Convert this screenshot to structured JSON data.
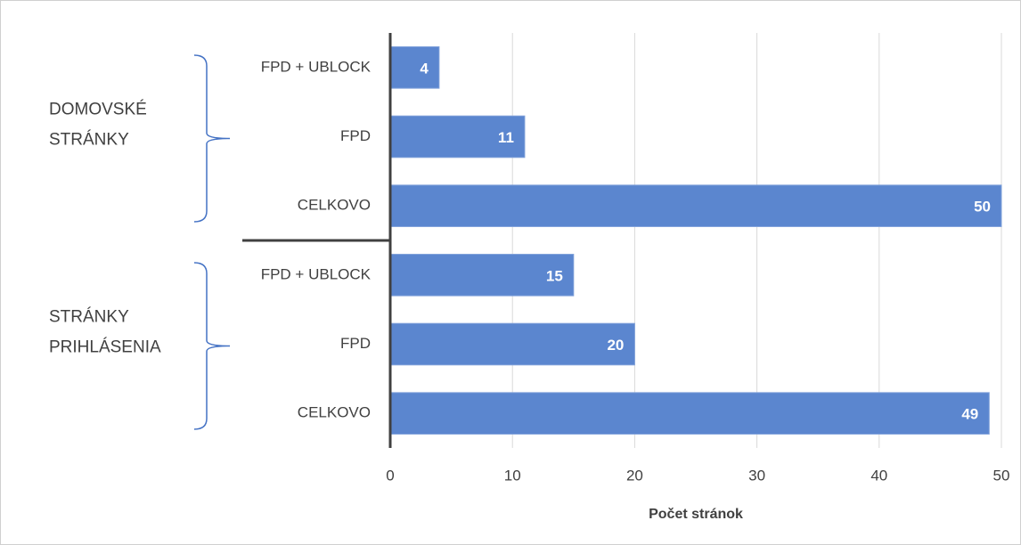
{
  "chart_data": {
    "type": "bar",
    "orientation": "horizontal",
    "color": "#5b86cf",
    "grid": true,
    "xlabel": "Počet stránok",
    "xlim": [
      0,
      50
    ],
    "xticks": [
      0,
      10,
      20,
      30,
      40,
      50
    ],
    "groups": [
      {
        "label_lines": [
          "DOMOVSKÉ",
          "STRÁNKY"
        ],
        "categories": [
          "FPD + UBLOCK",
          "FPD",
          "CELKOVO"
        ],
        "values": [
          4,
          11,
          50
        ]
      },
      {
        "label_lines": [
          "STRÁNKY",
          "PRIHLÁSENIA"
        ],
        "categories": [
          "FPD + UBLOCK",
          "FPD",
          "CELKOVO"
        ],
        "values": [
          15,
          20,
          49
        ]
      }
    ]
  }
}
